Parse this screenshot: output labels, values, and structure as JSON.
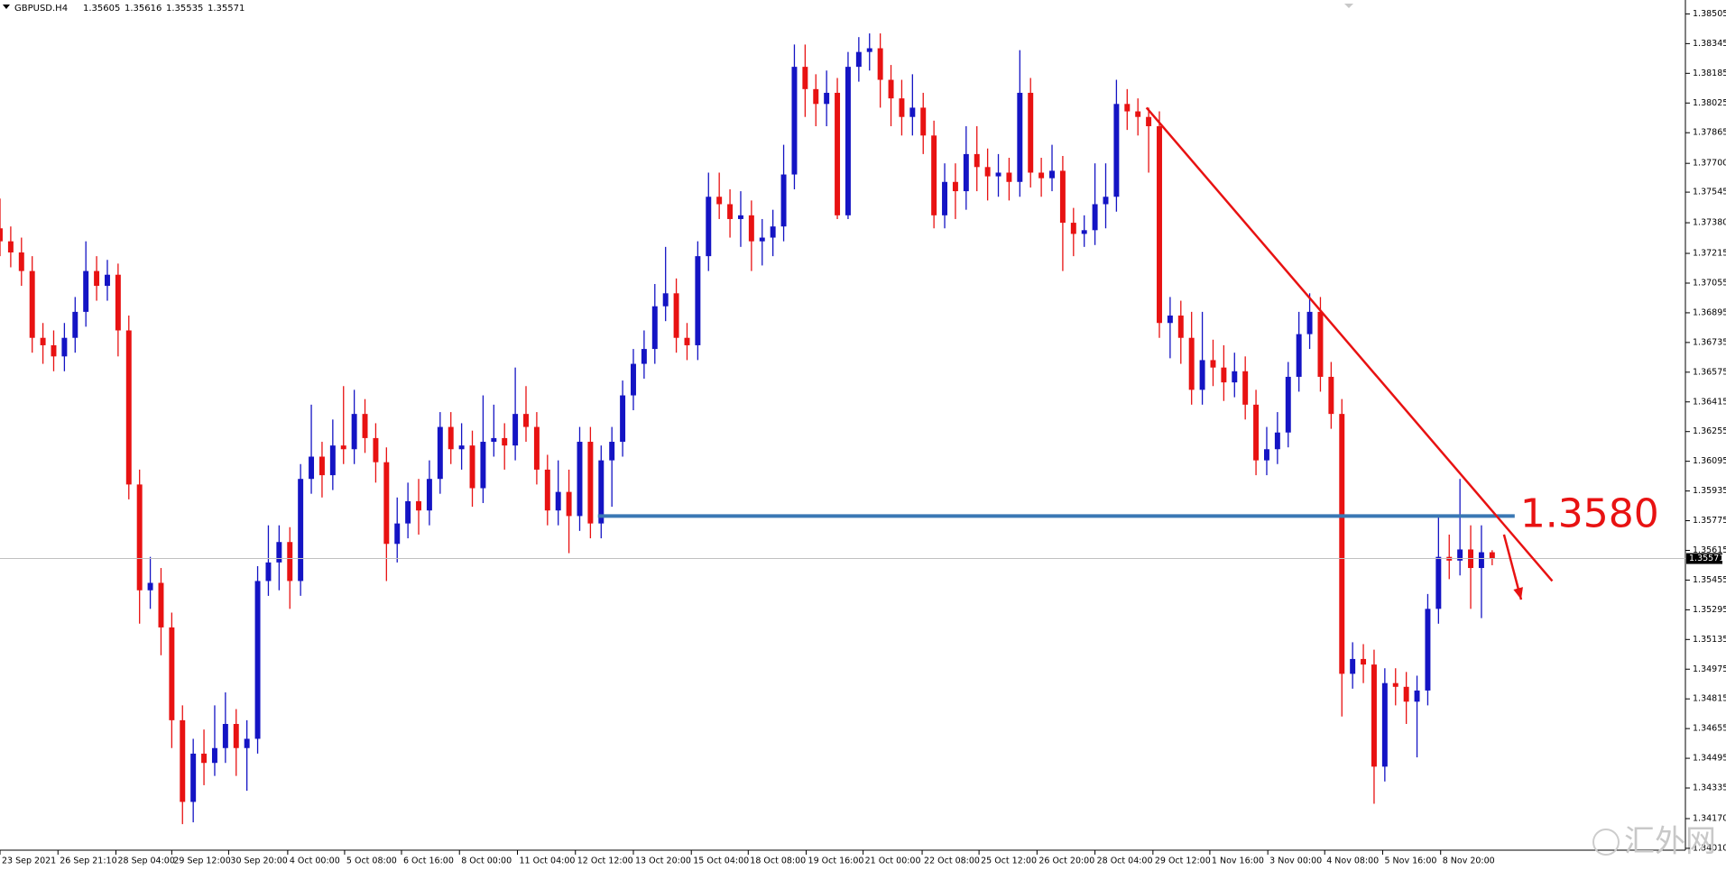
{
  "chart_data": {
    "type": "candlestick",
    "symbol": "GBPUSD.H4",
    "up_color": "#1414c4",
    "down_color": "#e81212",
    "grid": false,
    "ylim": [
      1.34,
      1.3858
    ],
    "yticks": [
      1.38505,
      1.38345,
      1.38185,
      1.38025,
      1.37865,
      {
        "value": 1.377,
        "label": "1.37700"
      },
      1.37545,
      {
        "value": 1.3738,
        "label": "1.37380"
      },
      1.37215,
      1.37055,
      1.36895,
      1.36735,
      1.36575,
      1.36415,
      1.36255,
      1.36095,
      1.35935,
      1.35775,
      1.35615,
      1.35455,
      1.35295,
      1.35135,
      1.34975,
      1.34815,
      1.34655,
      1.34495,
      1.34335,
      {
        "value": 1.3417,
        "label": "1.34170"
      },
      {
        "value": 1.3401,
        "label": "1.34010"
      }
    ],
    "xlim": [
      0,
      157
    ],
    "xticks": [
      {
        "value": 0,
        "label": "23 Sep 2021"
      },
      {
        "value": 5.4,
        "label": "26 Sep 21:10"
      },
      {
        "value": 10.8,
        "label": "28 Sep 04:00"
      },
      {
        "value": 16,
        "label": "29 Sep 12:00"
      },
      {
        "value": 21.3,
        "label": "30 Sep 20:00"
      },
      {
        "value": 26.8,
        "label": "4 Oct 00:00"
      },
      {
        "value": 32.1,
        "label": "5 Oct 08:00"
      },
      {
        "value": 37.4,
        "label": "6 Oct 16:00"
      },
      {
        "value": 42.8,
        "label": "8 Oct 00:00"
      },
      {
        "value": 48.2,
        "label": "11 Oct 04:00"
      },
      {
        "value": 53.6,
        "label": "12 Oct 12:00"
      },
      {
        "value": 59,
        "label": "13 Oct 20:00"
      },
      {
        "value": 64.4,
        "label": "15 Oct 04:00"
      },
      {
        "value": 69.7,
        "label": "18 Oct 08:00"
      },
      {
        "value": 75.1,
        "label": "19 Oct 16:00"
      },
      {
        "value": 80.4,
        "label": "21 Oct 00:00"
      },
      {
        "value": 85.9,
        "label": "22 Oct 08:00"
      },
      {
        "value": 91.2,
        "label": "25 Oct 12:00"
      },
      {
        "value": 96.6,
        "label": "26 Oct 20:00"
      },
      {
        "value": 102,
        "label": "28 Oct 04:00"
      },
      {
        "value": 107.4,
        "label": "29 Oct 12:00"
      },
      {
        "value": 112.7,
        "label": "1 Nov 16:00"
      },
      {
        "value": 118.1,
        "label": "3 Nov 00:00"
      },
      {
        "value": 123.4,
        "label": "4 Nov 08:00"
      },
      {
        "value": 128.8,
        "label": "5 Nov 16:00"
      },
      {
        "value": 134.2,
        "label": "8 Nov 20:00"
      }
    ],
    "ohlc": [
      [
        1.3735,
        1.3751,
        1.372,
        1.3728
      ],
      [
        1.3728,
        1.3736,
        1.3714,
        1.3722
      ],
      [
        1.3722,
        1.373,
        1.3704,
        1.3712
      ],
      [
        1.3712,
        1.372,
        1.3668,
        1.3676
      ],
      [
        1.3676,
        1.3684,
        1.3662,
        1.3672
      ],
      [
        1.3672,
        1.368,
        1.3658,
        1.3666
      ],
      [
        1.3666,
        1.3684,
        1.3658,
        1.3676
      ],
      [
        1.3676,
        1.3698,
        1.3668,
        1.369
      ],
      [
        1.369,
        1.3728,
        1.3682,
        1.3712
      ],
      [
        1.3712,
        1.372,
        1.3696,
        1.3704
      ],
      [
        1.3704,
        1.3718,
        1.3696,
        1.371
      ],
      [
        1.371,
        1.3716,
        1.3666,
        1.368
      ],
      [
        1.368,
        1.3688,
        1.3589,
        1.3597
      ],
      [
        1.3597,
        1.3605,
        1.3522,
        1.354
      ],
      [
        1.354,
        1.3558,
        1.353,
        1.3544
      ],
      [
        1.3544,
        1.3552,
        1.3505,
        1.352
      ],
      [
        1.352,
        1.3528,
        1.3455,
        1.347
      ],
      [
        1.347,
        1.3478,
        1.3414,
        1.3426
      ],
      [
        1.3426,
        1.346,
        1.3415,
        1.3452
      ],
      [
        1.3452,
        1.3465,
        1.3435,
        1.3447
      ],
      [
        1.3447,
        1.3478,
        1.344,
        1.3455
      ],
      [
        1.3455,
        1.3485,
        1.3447,
        1.3468
      ],
      [
        1.3468,
        1.3476,
        1.344,
        1.3455
      ],
      [
        1.3455,
        1.347,
        1.3432,
        1.346
      ],
      [
        1.346,
        1.3553,
        1.3452,
        1.3545
      ],
      [
        1.3545,
        1.3575,
        1.3537,
        1.3555
      ],
      [
        1.3555,
        1.3575,
        1.354,
        1.3566
      ],
      [
        1.3566,
        1.3574,
        1.353,
        1.3545
      ],
      [
        1.3545,
        1.3608,
        1.3537,
        1.36
      ],
      [
        1.36,
        1.364,
        1.3592,
        1.3612
      ],
      [
        1.3612,
        1.362,
        1.359,
        1.3602
      ],
      [
        1.3602,
        1.3632,
        1.3594,
        1.3618
      ],
      [
        1.3618,
        1.365,
        1.3608,
        1.3616
      ],
      [
        1.3616,
        1.3648,
        1.3608,
        1.3635
      ],
      [
        1.3635,
        1.3643,
        1.3614,
        1.3622
      ],
      [
        1.3622,
        1.363,
        1.3598,
        1.3609
      ],
      [
        1.3609,
        1.3617,
        1.3545,
        1.3565
      ],
      [
        1.3565,
        1.359,
        1.3555,
        1.3576
      ],
      [
        1.3576,
        1.3598,
        1.3568,
        1.3588
      ],
      [
        1.3588,
        1.36,
        1.357,
        1.3583
      ],
      [
        1.3583,
        1.361,
        1.3575,
        1.36
      ],
      [
        1.36,
        1.3636,
        1.3592,
        1.3628
      ],
      [
        1.3628,
        1.3636,
        1.3608,
        1.3616
      ],
      [
        1.3616,
        1.363,
        1.3605,
        1.3618
      ],
      [
        1.3618,
        1.3626,
        1.3585,
        1.3595
      ],
      [
        1.3595,
        1.3645,
        1.3587,
        1.362
      ],
      [
        1.362,
        1.364,
        1.3612,
        1.3622
      ],
      [
        1.3622,
        1.363,
        1.3605,
        1.3618
      ],
      [
        1.3618,
        1.366,
        1.361,
        1.3635
      ],
      [
        1.3635,
        1.365,
        1.362,
        1.3628
      ],
      [
        1.3628,
        1.3636,
        1.3597,
        1.3605
      ],
      [
        1.3605,
        1.3613,
        1.3575,
        1.3583
      ],
      [
        1.3583,
        1.361,
        1.3575,
        1.3593
      ],
      [
        1.3593,
        1.3605,
        1.356,
        1.358
      ],
      [
        1.358,
        1.3628,
        1.3572,
        1.362
      ],
      [
        1.362,
        1.3628,
        1.3568,
        1.3576
      ],
      [
        1.3576,
        1.3618,
        1.3568,
        1.361
      ],
      [
        1.361,
        1.3628,
        1.3585,
        1.362
      ],
      [
        1.362,
        1.3653,
        1.3612,
        1.3645
      ],
      [
        1.3645,
        1.367,
        1.3637,
        1.3662
      ],
      [
        1.3662,
        1.368,
        1.3654,
        1.367
      ],
      [
        1.367,
        1.3705,
        1.3662,
        1.3693
      ],
      [
        1.3693,
        1.3725,
        1.3685,
        1.37
      ],
      [
        1.37,
        1.3708,
        1.3668,
        1.3676
      ],
      [
        1.3676,
        1.3684,
        1.3664,
        1.3672
      ],
      [
        1.3672,
        1.3728,
        1.3664,
        1.372
      ],
      [
        1.372,
        1.3765,
        1.3712,
        1.3752
      ],
      [
        1.3752,
        1.3765,
        1.374,
        1.3748
      ],
      [
        1.3748,
        1.3756,
        1.373,
        1.374
      ],
      [
        1.374,
        1.3755,
        1.3725,
        1.3742
      ],
      [
        1.3742,
        1.375,
        1.3712,
        1.3728
      ],
      [
        1.3728,
        1.374,
        1.3715,
        1.373
      ],
      [
        1.373,
        1.3745,
        1.372,
        1.3736
      ],
      [
        1.3736,
        1.378,
        1.3728,
        1.3764
      ],
      [
        1.3764,
        1.3834,
        1.3756,
        1.3822
      ],
      [
        1.3822,
        1.3834,
        1.3795,
        1.381
      ],
      [
        1.381,
        1.3818,
        1.379,
        1.3802
      ],
      [
        1.3802,
        1.382,
        1.379,
        1.3808
      ],
      [
        1.3808,
        1.3816,
        1.374,
        1.3742
      ],
      [
        1.3742,
        1.383,
        1.374,
        1.3822
      ],
      [
        1.3822,
        1.3838,
        1.3814,
        1.383
      ],
      [
        1.383,
        1.384,
        1.382,
        1.3832
      ],
      [
        1.3832,
        1.384,
        1.38,
        1.3815
      ],
      [
        1.3815,
        1.3823,
        1.379,
        1.3805
      ],
      [
        1.3805,
        1.3815,
        1.3785,
        1.3795
      ],
      [
        1.3795,
        1.3818,
        1.3785,
        1.38
      ],
      [
        1.38,
        1.3808,
        1.3775,
        1.3785
      ],
      [
        1.3785,
        1.3793,
        1.3735,
        1.3742
      ],
      [
        1.3742,
        1.377,
        1.3735,
        1.376
      ],
      [
        1.376,
        1.377,
        1.374,
        1.3755
      ],
      [
        1.3755,
        1.379,
        1.3745,
        1.3775
      ],
      [
        1.3775,
        1.379,
        1.3755,
        1.3768
      ],
      [
        1.3768,
        1.3778,
        1.375,
        1.3763
      ],
      [
        1.3763,
        1.3775,
        1.3752,
        1.3765
      ],
      [
        1.3765,
        1.3773,
        1.375,
        1.376
      ],
      [
        1.376,
        1.3831,
        1.3752,
        1.3808
      ],
      [
        1.3808,
        1.3816,
        1.3757,
        1.3765
      ],
      [
        1.3765,
        1.3773,
        1.3752,
        1.3762
      ],
      [
        1.3762,
        1.378,
        1.3755,
        1.3766
      ],
      [
        1.3766,
        1.3774,
        1.3712,
        1.3738
      ],
      [
        1.3738,
        1.3746,
        1.372,
        1.3732
      ],
      [
        1.3732,
        1.3742,
        1.3725,
        1.3734
      ],
      [
        1.3734,
        1.377,
        1.3726,
        1.3748
      ],
      [
        1.3748,
        1.377,
        1.3735,
        1.3752
      ],
      [
        1.3752,
        1.3815,
        1.3744,
        1.3802
      ],
      [
        1.3802,
        1.381,
        1.3788,
        1.3798
      ],
      [
        1.3798,
        1.3805,
        1.3785,
        1.3795
      ],
      [
        1.3795,
        1.38,
        1.3765,
        1.379
      ],
      [
        1.379,
        1.3798,
        1.3676,
        1.3684
      ],
      [
        1.3684,
        1.3698,
        1.3665,
        1.3688
      ],
      [
        1.3688,
        1.3696,
        1.3662,
        1.3676
      ],
      [
        1.3676,
        1.369,
        1.364,
        1.3648
      ],
      [
        1.3648,
        1.369,
        1.364,
        1.3664
      ],
      [
        1.3664,
        1.3675,
        1.365,
        1.366
      ],
      [
        1.366,
        1.3672,
        1.3642,
        1.3652
      ],
      [
        1.3652,
        1.3668,
        1.3644,
        1.3658
      ],
      [
        1.3658,
        1.3666,
        1.3632,
        1.364
      ],
      [
        1.364,
        1.3648,
        1.3602,
        1.361
      ],
      [
        1.361,
        1.3628,
        1.3602,
        1.3616
      ],
      [
        1.3616,
        1.3636,
        1.3608,
        1.3625
      ],
      [
        1.3625,
        1.3663,
        1.3617,
        1.3655
      ],
      [
        1.3655,
        1.369,
        1.3647,
        1.3678
      ],
      [
        1.3678,
        1.37,
        1.367,
        1.369
      ],
      [
        1.369,
        1.3698,
        1.3647,
        1.3655
      ],
      [
        1.3655,
        1.3663,
        1.3627,
        1.3635
      ],
      [
        1.3635,
        1.3643,
        1.3472,
        1.3495
      ],
      [
        1.3495,
        1.3512,
        1.3487,
        1.3503
      ],
      [
        1.3503,
        1.3511,
        1.349,
        1.35
      ],
      [
        1.35,
        1.3508,
        1.3425,
        1.3445
      ],
      [
        1.3445,
        1.3498,
        1.3437,
        1.349
      ],
      [
        1.349,
        1.3498,
        1.3478,
        1.3488
      ],
      [
        1.3488,
        1.3496,
        1.3468,
        1.348
      ],
      [
        1.348,
        1.3494,
        1.345,
        1.3486
      ],
      [
        1.3486,
        1.3538,
        1.3478,
        1.353
      ],
      [
        1.353,
        1.358,
        1.3522,
        1.3558
      ],
      [
        1.3558,
        1.357,
        1.3546,
        1.3556
      ],
      [
        1.3556,
        1.36,
        1.3548,
        1.3562
      ],
      [
        1.3562,
        1.3575,
        1.353,
        1.3552
      ],
      [
        1.3552,
        1.3575,
        1.3525,
        1.35605
      ],
      [
        1.35605,
        1.35616,
        1.35535,
        1.35571
      ]
    ],
    "levels": [
      {
        "value": 1.358,
        "label": "1.3580",
        "color": "#3a78b4",
        "x": [
          55.7,
          141.1
        ]
      }
    ],
    "trendline": {
      "color": "#e81212",
      "x": [
        106.8,
        144.6
      ],
      "y": [
        1.38,
        1.3545
      ]
    },
    "arrow": {
      "color": "#e81212",
      "x": [
        140.1,
        141.7
      ],
      "y": [
        1.357,
        1.3535
      ]
    },
    "watermark": "汇外网"
  }
}
